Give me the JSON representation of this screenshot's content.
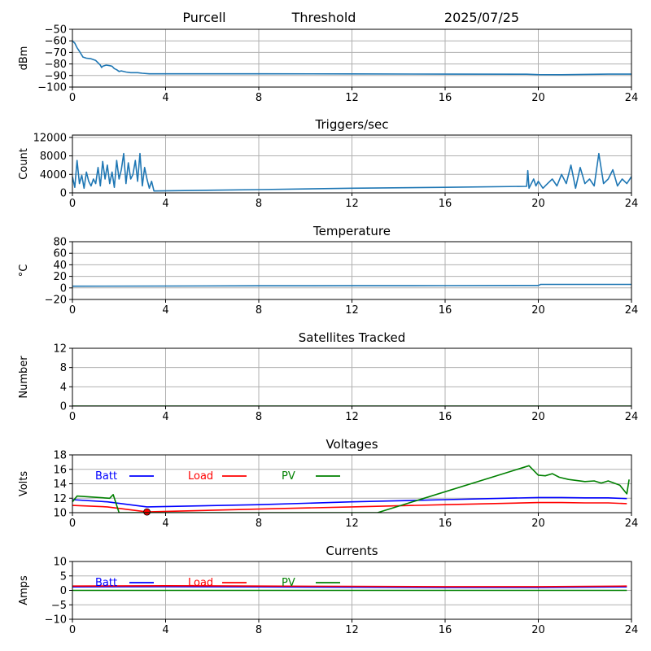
{
  "header": {
    "station": "Purcell",
    "mode": "Threshold",
    "date": "2025/07/25"
  },
  "colors": {
    "series_default": "#1f77b4",
    "batt": "#0000ff",
    "load": "#ff0000",
    "pv": "#008000",
    "grid": "#b0b0b0"
  },
  "chart_data": [
    {
      "id": "signal",
      "type": "line",
      "title": "",
      "xlabel": "",
      "ylabel": "dBm",
      "xlim": [
        0,
        24
      ],
      "ylim": [
        -100,
        -50
      ],
      "xticks": [
        0,
        4,
        8,
        12,
        16,
        20,
        24
      ],
      "yticks": [
        -100,
        -90,
        -80,
        -70,
        -60,
        -50
      ],
      "grid": true,
      "series": [
        {
          "color": "#1f77b4",
          "x": [
            0,
            0.1,
            0.2,
            0.3,
            0.45,
            0.6,
            0.8,
            1.0,
            1.1,
            1.2,
            1.25,
            1.3,
            1.45,
            1.6,
            1.7,
            1.8,
            1.9,
            2.0,
            2.1,
            2.3,
            2.5,
            2.8,
            3.0,
            3.3,
            3.5,
            8,
            12,
            16,
            19.5,
            20,
            21,
            22,
            23,
            24
          ],
          "y": [
            -60,
            -62,
            -66,
            -69,
            -74,
            -75,
            -75.5,
            -77,
            -79,
            -81,
            -83,
            -82,
            -81,
            -81.5,
            -82,
            -84,
            -85,
            -86.5,
            -86,
            -87,
            -87.5,
            -87.5,
            -88,
            -88.5,
            -88.5,
            -88.5,
            -88.6,
            -88.8,
            -88.9,
            -89.2,
            -89.3,
            -89.0,
            -88.8,
            -88.8
          ]
        }
      ]
    },
    {
      "id": "triggers",
      "type": "line",
      "title": "Triggers/sec",
      "xlabel": "",
      "ylabel": "Count",
      "xlim": [
        0,
        24
      ],
      "ylim": [
        0,
        12500
      ],
      "xticks": [
        0,
        4,
        8,
        12,
        16,
        20,
        24
      ],
      "yticks": [
        0,
        4000,
        8000,
        12000
      ],
      "grid": true,
      "series": [
        {
          "color": "#1f77b4",
          "x": [
            0,
            0.1,
            0.2,
            0.3,
            0.4,
            0.5,
            0.6,
            0.7,
            0.8,
            0.9,
            1.0,
            1.1,
            1.2,
            1.3,
            1.4,
            1.5,
            1.6,
            1.7,
            1.8,
            1.9,
            2.0,
            2.1,
            2.2,
            2.3,
            2.4,
            2.5,
            2.6,
            2.7,
            2.8,
            2.9,
            3.0,
            3.1,
            3.2,
            3.3,
            3.4,
            3.5,
            8,
            12,
            16,
            19.5,
            19.55,
            19.6,
            19.7,
            19.8,
            19.9,
            20.0,
            20.2,
            20.4,
            20.6,
            20.8,
            21.0,
            21.2,
            21.4,
            21.6,
            21.8,
            22.0,
            22.2,
            22.4,
            22.6,
            22.8,
            23.0,
            23.2,
            23.4,
            23.6,
            23.8,
            24
          ],
          "y": [
            3500,
            1200,
            7000,
            2000,
            3800,
            1000,
            4500,
            2500,
            1500,
            3000,
            2000,
            5500,
            1500,
            6800,
            3000,
            6000,
            2000,
            4500,
            1200,
            7000,
            3000,
            5000,
            8500,
            2000,
            6500,
            3000,
            4000,
            7000,
            2500,
            8500,
            1500,
            5500,
            3000,
            1000,
            2500,
            400,
            700,
            1000,
            1200,
            1400,
            4800,
            1000,
            2000,
            3000,
            1500,
            2500,
            1000,
            2000,
            3000,
            1500,
            4000,
            2000,
            6000,
            1000,
            5500,
            2000,
            3000,
            1500,
            8500,
            2000,
            3000,
            5000,
            1500,
            3000,
            2000,
            3500
          ]
        }
      ]
    },
    {
      "id": "temperature",
      "type": "line",
      "title": "Temperature",
      "xlabel": "",
      "ylabel": "°C",
      "xlim": [
        0,
        24
      ],
      "ylim": [
        -20,
        80
      ],
      "xticks": [
        0,
        4,
        8,
        12,
        16,
        20,
        24
      ],
      "yticks": [
        -20,
        0,
        20,
        40,
        60,
        80
      ],
      "grid": true,
      "series": [
        {
          "color": "#1f77b4",
          "x": [
            0,
            4,
            8,
            12,
            16,
            20,
            20.1,
            20.2,
            24
          ],
          "y": [
            3,
            3.3,
            3.6,
            3.8,
            4,
            4.2,
            6,
            6,
            6
          ]
        }
      ]
    },
    {
      "id": "satellites",
      "type": "line",
      "title": "Satellites Tracked",
      "xlabel": "",
      "ylabel": "Number",
      "xlim": [
        0,
        24
      ],
      "ylim": [
        0,
        12
      ],
      "xticks": [
        0,
        4,
        8,
        12,
        16,
        20,
        24
      ],
      "yticks": [
        0,
        4,
        8,
        12
      ],
      "grid": true,
      "series": [
        {
          "color": "#008000",
          "x": [
            0,
            24
          ],
          "y": [
            0,
            0
          ]
        }
      ]
    },
    {
      "id": "voltages",
      "type": "line",
      "title": "Voltages",
      "xlabel": "",
      "ylabel": "Volts",
      "xlim": [
        0,
        24
      ],
      "ylim": [
        10,
        18
      ],
      "xticks": [
        0,
        4,
        8,
        12,
        16,
        20,
        24
      ],
      "yticks": [
        10,
        12,
        14,
        16,
        18
      ],
      "grid": true,
      "legend": "top-left",
      "series": [
        {
          "name": "Batt",
          "color": "#0000ff",
          "x": [
            0,
            1.5,
            3.2,
            8,
            12,
            16,
            20,
            21,
            22,
            23,
            23.8
          ],
          "y": [
            11.8,
            11.5,
            10.8,
            11.1,
            11.5,
            11.8,
            12.1,
            12.1,
            12.05,
            12.05,
            11.95
          ]
        },
        {
          "name": "Load",
          "color": "#ff0000",
          "x": [
            0,
            1.5,
            3.2,
            8,
            12,
            16,
            20,
            21,
            22,
            23,
            23.8
          ],
          "y": [
            11.0,
            10.8,
            10.1,
            10.5,
            10.8,
            11.1,
            11.4,
            11.4,
            11.35,
            11.35,
            11.25
          ],
          "highlight": [
            3.2,
            10.1
          ]
        },
        {
          "name": "PV",
          "color": "#008000",
          "x": [
            0,
            0.2,
            1.6,
            1.75,
            2.0,
            13.1,
            19.6,
            20.0,
            20.3,
            20.6,
            20.9,
            21.3,
            22.0,
            22.4,
            22.7,
            23.0,
            23.5,
            23.8,
            23.9
          ],
          "y": [
            11.5,
            12.3,
            12.0,
            12.5,
            10.0,
            10.0,
            16.5,
            15.2,
            15.1,
            15.4,
            14.9,
            14.6,
            14.3,
            14.4,
            14.1,
            14.4,
            13.8,
            12.6,
            14.6
          ]
        }
      ]
    },
    {
      "id": "currents",
      "type": "line",
      "title": "Currents",
      "xlabel": "",
      "ylabel": "Amps",
      "xlim": [
        0,
        24
      ],
      "ylim": [
        -10,
        10
      ],
      "xticks": [
        0,
        4,
        8,
        12,
        16,
        20,
        24
      ],
      "yticks": [
        -10,
        -5,
        0,
        5,
        10
      ],
      "grid": true,
      "legend": "top-left",
      "series": [
        {
          "name": "Batt",
          "color": "#0000ff",
          "x": [
            0,
            4,
            8,
            12,
            16,
            20,
            23.8
          ],
          "y": [
            1.2,
            1.3,
            1.2,
            1.1,
            1.0,
            1.0,
            1.2
          ]
        },
        {
          "name": "Load",
          "color": "#ff0000",
          "x": [
            0,
            4,
            8,
            12,
            16,
            20,
            23.8
          ],
          "y": [
            1.5,
            1.6,
            1.5,
            1.4,
            1.3,
            1.3,
            1.5
          ]
        },
        {
          "name": "PV",
          "color": "#008000",
          "x": [
            0,
            23.8
          ],
          "y": [
            0,
            0
          ]
        }
      ]
    }
  ]
}
